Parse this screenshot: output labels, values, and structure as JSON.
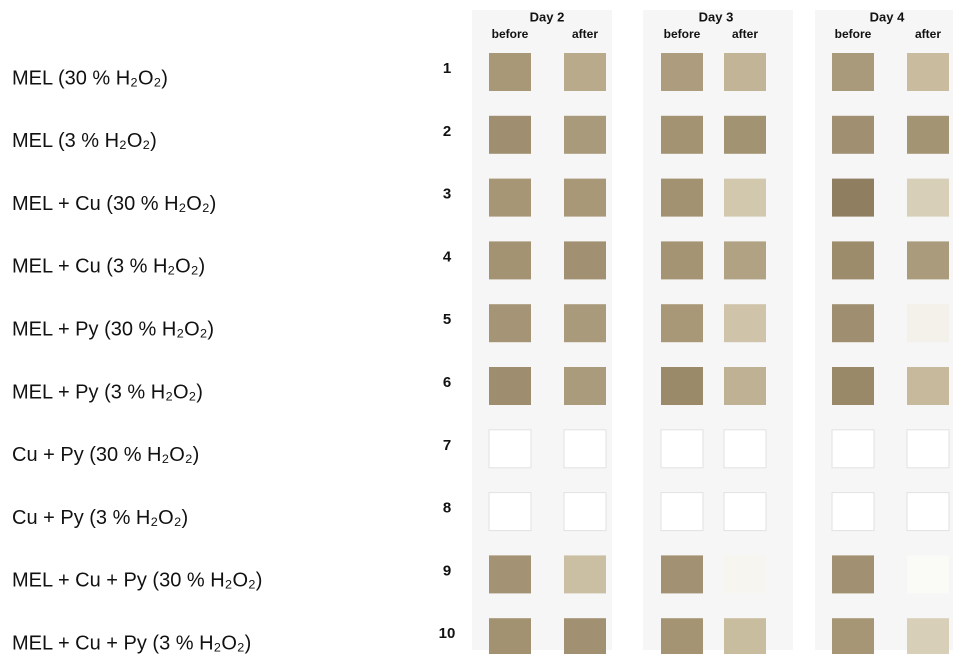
{
  "columns": [
    {
      "day": "Day 2",
      "before": "before",
      "after": "after"
    },
    {
      "day": "Day 3",
      "before": "before",
      "after": "after"
    },
    {
      "day": "Day 4",
      "before": "before",
      "after": "after"
    }
  ],
  "rows": [
    {
      "label": "MEL (30 % H₂O₂)",
      "number": 1,
      "swatches": [
        "#a89878",
        "#b8aa8a",
        "#ad9d7e",
        "#c2b597",
        "#a99a7b",
        "#c9bc9e"
      ]
    },
    {
      "label": "MEL (3 % H₂O₂)",
      "number": 2,
      "swatches": [
        "#9f8f70",
        "#a89a7a",
        "#a39373",
        "#a29372",
        "#a09071",
        "#a39474"
      ]
    },
    {
      "label": "MEL + Cu (30 % H₂O₂)",
      "number": 3,
      "swatches": [
        "#a69676",
        "#a89878",
        "#a29272",
        "#d2c8ae",
        "#8f7f60",
        "#d8cfb8"
      ]
    },
    {
      "label": "MEL + Cu (3 % H₂O₂)",
      "number": 4,
      "swatches": [
        "#a39373",
        "#a19172",
        "#a49474",
        "#b0a283",
        "#9c8c6c",
        "#aa9b7c"
      ]
    },
    {
      "label": "MEL + Py (30 % H₂O₂)",
      "number": 5,
      "swatches": [
        "#a59576",
        "#a99a7b",
        "#a89878",
        "#cfc4aa",
        "#9f8f70",
        "#f4f1ea"
      ]
    },
    {
      "label": "MEL + Py (3 % H₂O₂)",
      "number": 6,
      "swatches": [
        "#9e8e6f",
        "#aa9b7c",
        "#9a8a6a",
        "#bfb193",
        "#998969",
        "#c7ba9c"
      ]
    },
    {
      "label": "Cu + Py (30 % H₂O₂)",
      "number": 7,
      "swatches": [
        "#ffffff",
        "#ffffff",
        "#ffffff",
        "#ffffff",
        "#ffffff",
        "#ffffff"
      ]
    },
    {
      "label": "Cu + Py (3 % H₂O₂)",
      "number": 8,
      "swatches": [
        "#ffffff",
        "#ffffff",
        "#ffffff",
        "#ffffff",
        "#ffffff",
        "#ffffff"
      ]
    },
    {
      "label": "MEL + Cu + Py (30 % H₂O₂)",
      "number": 9,
      "swatches": [
        "#a39374",
        "#cbbfa3",
        "#a29273",
        "#f7f5f0",
        "#a19172",
        "#fafaf7"
      ]
    },
    {
      "label": "MEL + Cu + Py (3 % H₂O₂)",
      "number": 10,
      "swatches": [
        "#a29272",
        "#a19172",
        "#a49474",
        "#c9bd9f",
        "#a69676",
        "#d8cfb8"
      ]
    }
  ]
}
